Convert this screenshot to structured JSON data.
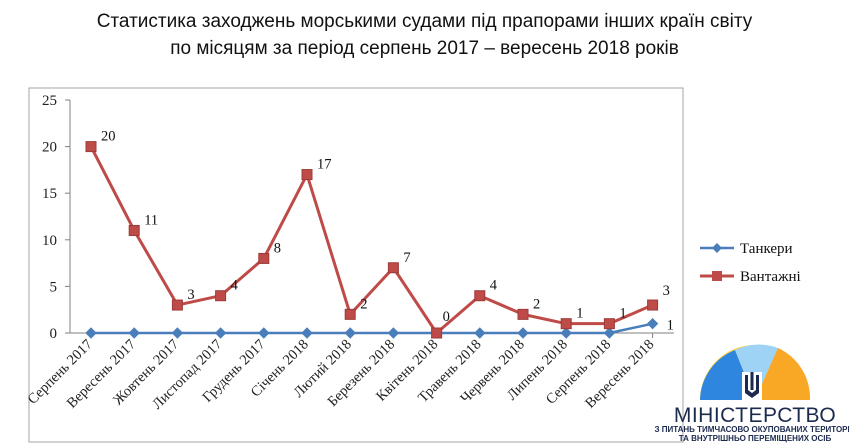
{
  "title_line1": "Статистика заходжень морськими судами під прапорами інших країн світу",
  "title_line2": "по місяцям за період серпень 2017 – вересень 2018 років",
  "chart_data": {
    "type": "line",
    "categories": [
      "Серпень 2017",
      "Вересень 2017",
      "Жовтень 2017",
      "Листопад 2017",
      "Грудень 2017",
      "Січень 2018",
      "Лютий 2018",
      "Березень 2018",
      "Квітень 2018",
      "Травень 2018",
      "Червень 2018",
      "Липень 2018",
      "Серпень 2018",
      "Вересень 2018"
    ],
    "series": [
      {
        "name": "Танкери",
        "color": "#4a7ebb",
        "marker": "diamond",
        "values": [
          0,
          0,
          0,
          0,
          0,
          0,
          0,
          0,
          0,
          0,
          0,
          0,
          0,
          1
        ]
      },
      {
        "name": "Вантажні",
        "color": "#be4b48",
        "marker": "square",
        "values": [
          20,
          11,
          3,
          4,
          8,
          17,
          2,
          7,
          0,
          4,
          2,
          1,
          1,
          3
        ]
      }
    ],
    "data_labels": [
      "20",
      "11",
      "3",
      "4",
      "8",
      "17",
      "2",
      "7",
      "0",
      "4",
      "2",
      "1",
      "1",
      "3",
      "1"
    ],
    "yticks": [
      "0",
      "5",
      "10",
      "15",
      "20",
      "25"
    ],
    "ylim": [
      0,
      25
    ],
    "grid": false,
    "legend": "right"
  },
  "logo": {
    "line1": "МІНІСТЕРСТВО",
    "line2": "З ПИТАНЬ ТИМЧАСОВО ОКУПОВАНИХ ТЕРИТОРІЙ",
    "line3": "ТА ВНУТРІШНЬО ПЕРЕМІЩЕНИХ ОСІБ"
  }
}
